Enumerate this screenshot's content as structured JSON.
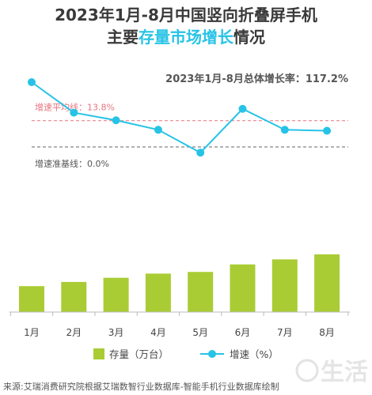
{
  "chart_data": {
    "type": "bar+line",
    "title_line1": "2023年1月-8月中国竖向折叠屏手机",
    "title_line2_prefix": "主要",
    "title_line2_accent": "存量市场增长",
    "title_line2_suffix": "情况",
    "total_growth_label": "2023年1月-8月总体增长率：117.2%",
    "avg_line_label": "增速平均线：13.8%",
    "base_line_label": "增速准基线：0.0%",
    "categories": [
      "1月",
      "2月",
      "3月",
      "4月",
      "5月",
      "6月",
      "7月",
      "8月"
    ],
    "series": [
      {
        "name": "存量（万台）",
        "type": "bar",
        "values": [
          31,
          36,
          41,
          46,
          48,
          57,
          63,
          69
        ]
      },
      {
        "name": "增速（%）",
        "type": "line",
        "values": [
          34,
          18,
          14,
          9,
          -3,
          20,
          9,
          8.5
        ]
      }
    ],
    "average_growth": 13.8,
    "baseline_growth": 0.0,
    "colors": {
      "bar": "#a9cc34",
      "line": "#27c3e6",
      "avg_line": "#e6747f",
      "base_line": "#555555",
      "title_accent": "#27c3e6"
    },
    "source": "来源:艾瑞消费研究院根据艾瑞数智行业数据库-智能手机行业数据库绘制",
    "watermark": "生活"
  }
}
